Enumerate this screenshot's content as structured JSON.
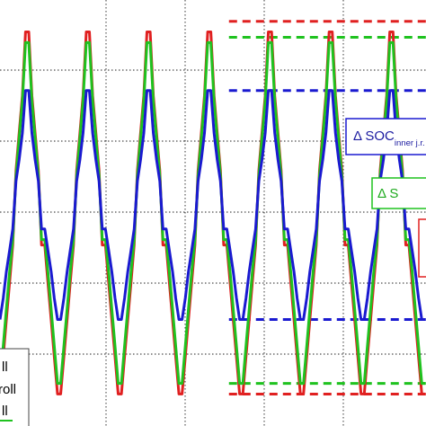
{
  "chart_data": {
    "type": "line",
    "title": "",
    "xlabel": "",
    "ylabel": "",
    "xlim": [
      0,
      4
    ],
    "ylim": [
      0,
      8
    ],
    "grid": true,
    "series": [
      {
        "color": "#e02020",
        "x": [
          0,
          0.03,
          0.06,
          0.09,
          0.12,
          0.15,
          0.18,
          0.21,
          0.24,
          0.27,
          0.3,
          0.33,
          0.36,
          0.39,
          0.42,
          0.45,
          0.48,
          0.51,
          0.54,
          0.57,
          0.6,
          0.63,
          0.66,
          0.69,
          0.72,
          0.75,
          0.78,
          0.81,
          0.84,
          0.87,
          0.9,
          0.93,
          0.96,
          0.99,
          1.02,
          1.05,
          1.08,
          1.11,
          1.14,
          1.17,
          1.2,
          1.23,
          1.26,
          1.29,
          1.32,
          1.35,
          1.38,
          1.41,
          1.44,
          1.47,
          1.5,
          1.53,
          1.56,
          1.59,
          1.62,
          1.65,
          1.68,
          1.71,
          1.74,
          1.77,
          1.8,
          1.83,
          1.86,
          1.89,
          1.92,
          1.95,
          1.98,
          2.01,
          2.04,
          2.07,
          2.1,
          2.13,
          2.16,
          2.19,
          2.22,
          2.25,
          2.28,
          2.31,
          2.34,
          2.37,
          2.4,
          2.43,
          2.46,
          2.49,
          2.52,
          2.55,
          2.58,
          2.61,
          2.64,
          2.67,
          2.7,
          2.73,
          2.76,
          2.79,
          2.82,
          2.85,
          2.88,
          2.91,
          2.94,
          2.97,
          3.0,
          3.03,
          3.06,
          3.09,
          3.12,
          3.15,
          3.18,
          3.21,
          3.24,
          3.27,
          3.3,
          3.33,
          3.36,
          3.39,
          3.42,
          3.45,
          3.48,
          3.51,
          3.54,
          3.57,
          3.6,
          3.63,
          3.66,
          3.69,
          3.72,
          3.75,
          3.78,
          3.81,
          3.84,
          3.87,
          3.9,
          3.93,
          3.96,
          3.99
        ],
        "y": [
          0.6,
          1.3,
          2.0,
          2.7,
          3.4,
          4.8,
          5.5,
          6.2,
          7.4,
          7.4,
          6.2,
          5.5,
          4.8,
          3.4,
          3.4,
          2.7,
          2.0,
          1.3,
          0.6,
          0.6,
          1.3,
          2.0,
          2.7,
          3.4,
          4.8,
          5.5,
          6.2,
          7.4,
          7.4,
          6.2,
          5.5,
          4.8,
          3.4,
          3.4,
          2.7,
          2.0,
          1.3,
          0.6,
          0.6,
          1.3,
          2.0,
          2.7,
          3.4,
          4.8,
          5.5,
          6.2,
          7.4,
          7.4,
          6.2,
          5.5,
          4.8,
          3.4,
          3.4,
          2.7,
          2.0,
          1.3,
          0.6,
          0.6,
          1.3,
          2.0,
          2.7,
          3.4,
          4.8,
          5.5,
          6.2,
          7.4,
          7.4,
          6.2,
          5.5,
          4.8,
          3.4,
          3.4,
          2.7,
          2.0,
          1.3,
          0.6,
          0.6,
          1.3,
          2.0,
          2.7,
          3.4,
          4.8,
          5.5,
          6.2,
          7.4,
          7.4,
          6.2,
          5.5,
          4.8,
          3.4,
          3.4,
          2.7,
          2.0,
          1.3,
          0.6,
          0.6,
          1.3,
          2.0,
          2.7,
          3.4,
          4.8,
          5.5,
          6.2,
          7.4,
          7.4,
          6.2,
          5.5,
          4.8,
          3.4,
          3.4,
          2.7,
          2.0,
          1.3,
          0.6,
          0.6,
          1.3,
          2.0,
          2.7,
          3.4,
          4.8,
          5.5,
          6.2,
          7.4,
          7.4,
          6.2,
          5.5,
          4.8,
          3.4,
          3.4,
          2.7,
          2.0,
          1.3,
          0.6,
          0.6
        ]
      },
      {
        "color": "#1fc21f",
        "x": [
          0,
          0.03,
          0.06,
          0.09,
          0.12,
          0.15,
          0.18,
          0.21,
          0.24,
          0.27,
          0.3,
          0.33,
          0.36,
          0.39,
          0.42,
          0.45,
          0.48,
          0.51,
          0.54,
          0.57,
          0.6,
          0.63,
          0.66,
          0.69,
          0.72,
          0.75,
          0.78,
          0.81,
          0.84,
          0.87,
          0.9,
          0.93,
          0.96,
          0.99,
          1.02,
          1.05,
          1.08,
          1.11,
          1.14,
          1.17,
          1.2,
          1.23,
          1.26,
          1.29,
          1.32,
          1.35,
          1.38,
          1.41,
          1.44,
          1.47,
          1.5,
          1.53,
          1.56,
          1.59,
          1.62,
          1.65,
          1.68,
          1.71,
          1.74,
          1.77,
          1.8,
          1.83,
          1.86,
          1.89,
          1.92,
          1.95,
          1.98,
          2.01,
          2.04,
          2.07,
          2.1,
          2.13,
          2.16,
          2.19,
          2.22,
          2.25,
          2.28,
          2.31,
          2.34,
          2.37,
          2.4,
          2.43,
          2.46,
          2.49,
          2.52,
          2.55,
          2.58,
          2.61,
          2.64,
          2.67,
          2.7,
          2.73,
          2.76,
          2.79,
          2.82,
          2.85,
          2.88,
          2.91,
          2.94,
          2.97,
          3.0,
          3.03,
          3.06,
          3.09,
          3.12,
          3.15,
          3.18,
          3.21,
          3.24,
          3.27,
          3.3,
          3.33,
          3.36,
          3.39,
          3.42,
          3.45,
          3.48,
          3.51,
          3.54,
          3.57,
          3.6,
          3.63,
          3.66,
          3.69,
          3.72,
          3.75,
          3.78,
          3.81,
          3.84,
          3.87,
          3.9,
          3.93,
          3.96,
          3.99
        ],
        "y": [
          0.8,
          1.5,
          2.2,
          2.9,
          3.5,
          4.7,
          5.4,
          6.1,
          7.2,
          7.2,
          6.1,
          5.4,
          4.7,
          3.5,
          3.5,
          2.9,
          2.2,
          1.5,
          0.8,
          0.8,
          1.5,
          2.2,
          2.9,
          3.5,
          4.7,
          5.4,
          6.1,
          7.2,
          7.2,
          6.1,
          5.4,
          4.7,
          3.5,
          3.5,
          2.9,
          2.2,
          1.5,
          0.8,
          0.8,
          1.5,
          2.2,
          2.9,
          3.5,
          4.7,
          5.4,
          6.1,
          7.2,
          7.2,
          6.1,
          5.4,
          4.7,
          3.5,
          3.5,
          2.9,
          2.2,
          1.5,
          0.8,
          0.8,
          1.5,
          2.2,
          2.9,
          3.5,
          4.7,
          5.4,
          6.1,
          7.2,
          7.2,
          6.1,
          5.4,
          4.7,
          3.5,
          3.5,
          2.9,
          2.2,
          1.5,
          0.8,
          0.8,
          1.5,
          2.2,
          2.9,
          3.5,
          4.7,
          5.4,
          6.1,
          7.2,
          7.2,
          6.1,
          5.4,
          4.7,
          3.5,
          3.5,
          2.9,
          2.2,
          1.5,
          0.8,
          0.8,
          1.5,
          2.2,
          2.9,
          3.5,
          4.7,
          5.4,
          6.1,
          7.2,
          7.2,
          6.1,
          5.4,
          4.7,
          3.5,
          3.5,
          2.9,
          2.2,
          1.5,
          0.8,
          0.8,
          1.5,
          2.2,
          2.9,
          3.5,
          4.7,
          5.4,
          6.1,
          7.2,
          7.2,
          6.1,
          5.4,
          4.7,
          3.5,
          3.5,
          2.9,
          2.2,
          1.5,
          0.8,
          0.8
        ]
      },
      {
        "color": "#1a1ad0",
        "x": [
          0,
          0.03,
          0.06,
          0.09,
          0.12,
          0.15,
          0.18,
          0.21,
          0.24,
          0.27,
          0.3,
          0.33,
          0.36,
          0.39,
          0.42,
          0.45,
          0.48,
          0.51,
          0.54,
          0.57,
          0.6,
          0.63,
          0.66,
          0.69,
          0.72,
          0.75,
          0.78,
          0.81,
          0.84,
          0.87,
          0.9,
          0.93,
          0.96,
          0.99,
          1.02,
          1.05,
          1.08,
          1.11,
          1.14,
          1.17,
          1.2,
          1.23,
          1.26,
          1.29,
          1.32,
          1.35,
          1.38,
          1.41,
          1.44,
          1.47,
          1.5,
          1.53,
          1.56,
          1.59,
          1.62,
          1.65,
          1.68,
          1.71,
          1.74,
          1.77,
          1.8,
          1.83,
          1.86,
          1.89,
          1.92,
          1.95,
          1.98,
          2.01,
          2.04,
          2.07,
          2.1,
          2.13,
          2.16,
          2.19,
          2.22,
          2.25,
          2.28,
          2.31,
          2.34,
          2.37,
          2.4,
          2.43,
          2.46,
          2.49,
          2.52,
          2.55,
          2.58,
          2.61,
          2.64,
          2.67,
          2.7,
          2.73,
          2.76,
          2.79,
          2.82,
          2.85,
          2.88,
          2.91,
          2.94,
          2.97,
          3.0,
          3.03,
          3.06,
          3.09,
          3.12,
          3.15,
          3.18,
          3.21,
          3.24,
          3.27,
          3.3,
          3.33,
          3.36,
          3.39,
          3.42,
          3.45,
          3.48,
          3.51,
          3.54,
          3.57,
          3.6,
          3.63,
          3.66,
          3.69,
          3.72,
          3.75,
          3.78,
          3.81,
          3.84,
          3.87,
          3.9,
          3.93,
          3.96,
          3.99
        ],
        "y": [
          2.0,
          2.4,
          2.9,
          3.3,
          3.7,
          4.6,
          5.0,
          5.5,
          6.3,
          6.3,
          5.5,
          5.0,
          4.6,
          3.7,
          3.7,
          3.3,
          2.9,
          2.4,
          2.0,
          2.0,
          2.4,
          2.9,
          3.3,
          3.7,
          4.6,
          5.0,
          5.5,
          6.3,
          6.3,
          5.5,
          5.0,
          4.6,
          3.7,
          3.7,
          3.3,
          2.9,
          2.4,
          2.0,
          2.0,
          2.4,
          2.9,
          3.3,
          3.7,
          4.6,
          5.0,
          5.5,
          6.3,
          6.3,
          5.5,
          5.0,
          4.6,
          3.7,
          3.7,
          3.3,
          2.9,
          2.4,
          2.0,
          2.0,
          2.4,
          2.9,
          3.3,
          3.7,
          4.6,
          5.0,
          5.5,
          6.3,
          6.3,
          5.5,
          5.0,
          4.6,
          3.7,
          3.7,
          3.3,
          2.9,
          2.4,
          2.0,
          2.0,
          2.4,
          2.9,
          3.3,
          3.7,
          4.6,
          5.0,
          5.5,
          6.3,
          6.3,
          5.5,
          5.0,
          4.6,
          3.7,
          3.7,
          3.3,
          2.9,
          2.4,
          2.0,
          2.0,
          2.4,
          2.9,
          3.3,
          3.7,
          4.6,
          5.0,
          5.5,
          6.3,
          6.3,
          5.5,
          5.0,
          4.6,
          3.7,
          3.7,
          3.3,
          2.9,
          2.4,
          2.0,
          2.0,
          2.4,
          2.9,
          3.3,
          3.7,
          4.6,
          5.0,
          5.5,
          6.3,
          6.3,
          5.5,
          5.0,
          4.6,
          3.7,
          3.7,
          3.3,
          2.9,
          2.4,
          2.0,
          2.0
        ]
      }
    ],
    "reference_lines": [
      {
        "color": "#e02020",
        "x_from": 2.15,
        "x_to": 4.0,
        "y": 7.6
      },
      {
        "color": "#1fc21f",
        "x_from": 2.15,
        "x_to": 4.0,
        "y": 7.3
      },
      {
        "color": "#1a1ad0",
        "x_from": 2.15,
        "x_to": 4.0,
        "y": 6.3
      },
      {
        "color": "#1a1ad0",
        "x_from": 2.15,
        "x_to": 4.0,
        "y": 2.0
      },
      {
        "color": "#1fc21f",
        "x_from": 2.15,
        "x_to": 4.0,
        "y": 0.8
      },
      {
        "color": "#e02020",
        "x_from": 2.15,
        "x_to": 4.0,
        "y": 0.6
      }
    ],
    "annotations": {
      "inner": {
        "symbol": "Δ",
        "main": " SOC",
        "sub": "inner j.r.",
        "color": "#1a1aa0"
      },
      "green": {
        "text": "Δ S",
        "color": "#1faa1f"
      },
      "red_box_color": "#e02020"
    },
    "legend": {
      "placement": "bottom-left",
      "entries": [
        "ll",
        "roll",
        "ll"
      ]
    }
  }
}
